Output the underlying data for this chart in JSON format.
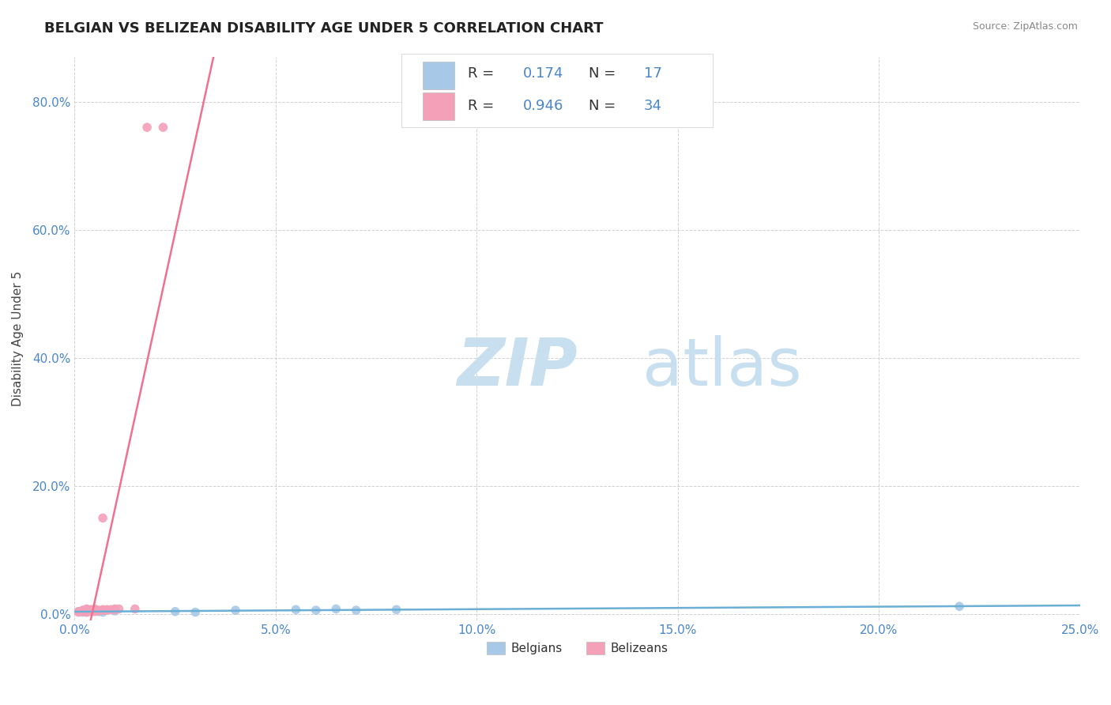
{
  "title": "BELGIAN VS BELIZEAN DISABILITY AGE UNDER 5 CORRELATION CHART",
  "source_text": "Source: ZipAtlas.com",
  "ylabel": "Disability Age Under 5",
  "xlim": [
    0.0,
    0.25
  ],
  "ylim": [
    -0.01,
    0.87
  ],
  "xticks": [
    0.0,
    0.05,
    0.1,
    0.15,
    0.2,
    0.25
  ],
  "xtick_labels": [
    "0.0%",
    "5.0%",
    "10.0%",
    "15.0%",
    "20.0%",
    "25.0%"
  ],
  "yticks": [
    0.0,
    0.2,
    0.4,
    0.6,
    0.8
  ],
  "ytick_labels": [
    "0.0%",
    "20.0%",
    "40.0%",
    "60.0%",
    "80.0%"
  ],
  "belgian_color": "#a8c8e8",
  "belizean_color": "#f4a0b8",
  "belgian_line_color": "#6baed6",
  "belizean_line_color": "#f07090",
  "belgian_R": 0.174,
  "belgian_N": 17,
  "belizean_R": 0.946,
  "belizean_N": 34,
  "watermark_zip": "ZIP",
  "watermark_atlas": "atlas",
  "watermark_color_zip": "#c8dff0",
  "watermark_color_atlas": "#c8dff0",
  "background_color": "#ffffff",
  "grid_color": "#cccccc",
  "stat_color": "#4a86c8",
  "legend_text_color": "#333333",
  "title_color": "#222222",
  "source_color": "#888888",
  "tick_color": "#4a86c8",
  "ylabel_color": "#444444",
  "belgian_x": [
    0.001,
    0.002,
    0.003,
    0.003,
    0.005,
    0.006,
    0.007,
    0.01,
    0.025,
    0.03,
    0.04,
    0.055,
    0.06,
    0.065,
    0.07,
    0.08,
    0.22
  ],
  "belgian_y": [
    0.004,
    0.003,
    0.005,
    0.003,
    0.005,
    0.004,
    0.003,
    0.005,
    0.004,
    0.003,
    0.006,
    0.007,
    0.006,
    0.008,
    0.006,
    0.007,
    0.012
  ],
  "belizean_x": [
    0.001,
    0.001,
    0.002,
    0.002,
    0.002,
    0.003,
    0.003,
    0.003,
    0.003,
    0.003,
    0.003,
    0.004,
    0.004,
    0.004,
    0.004,
    0.005,
    0.005,
    0.005,
    0.005,
    0.005,
    0.006,
    0.006,
    0.007,
    0.007,
    0.007,
    0.008,
    0.008,
    0.009,
    0.01,
    0.01,
    0.011,
    0.015,
    0.018,
    0.022
  ],
  "belizean_y": [
    0.003,
    0.004,
    0.004,
    0.005,
    0.006,
    0.003,
    0.004,
    0.005,
    0.006,
    0.007,
    0.008,
    0.004,
    0.005,
    0.006,
    0.007,
    0.004,
    0.005,
    0.006,
    0.007,
    0.008,
    0.005,
    0.006,
    0.006,
    0.007,
    0.15,
    0.006,
    0.007,
    0.007,
    0.007,
    0.008,
    0.008,
    0.008,
    0.76,
    0.76
  ],
  "title_fontsize": 13,
  "axis_label_fontsize": 11,
  "tick_fontsize": 11,
  "legend_fontsize": 13
}
